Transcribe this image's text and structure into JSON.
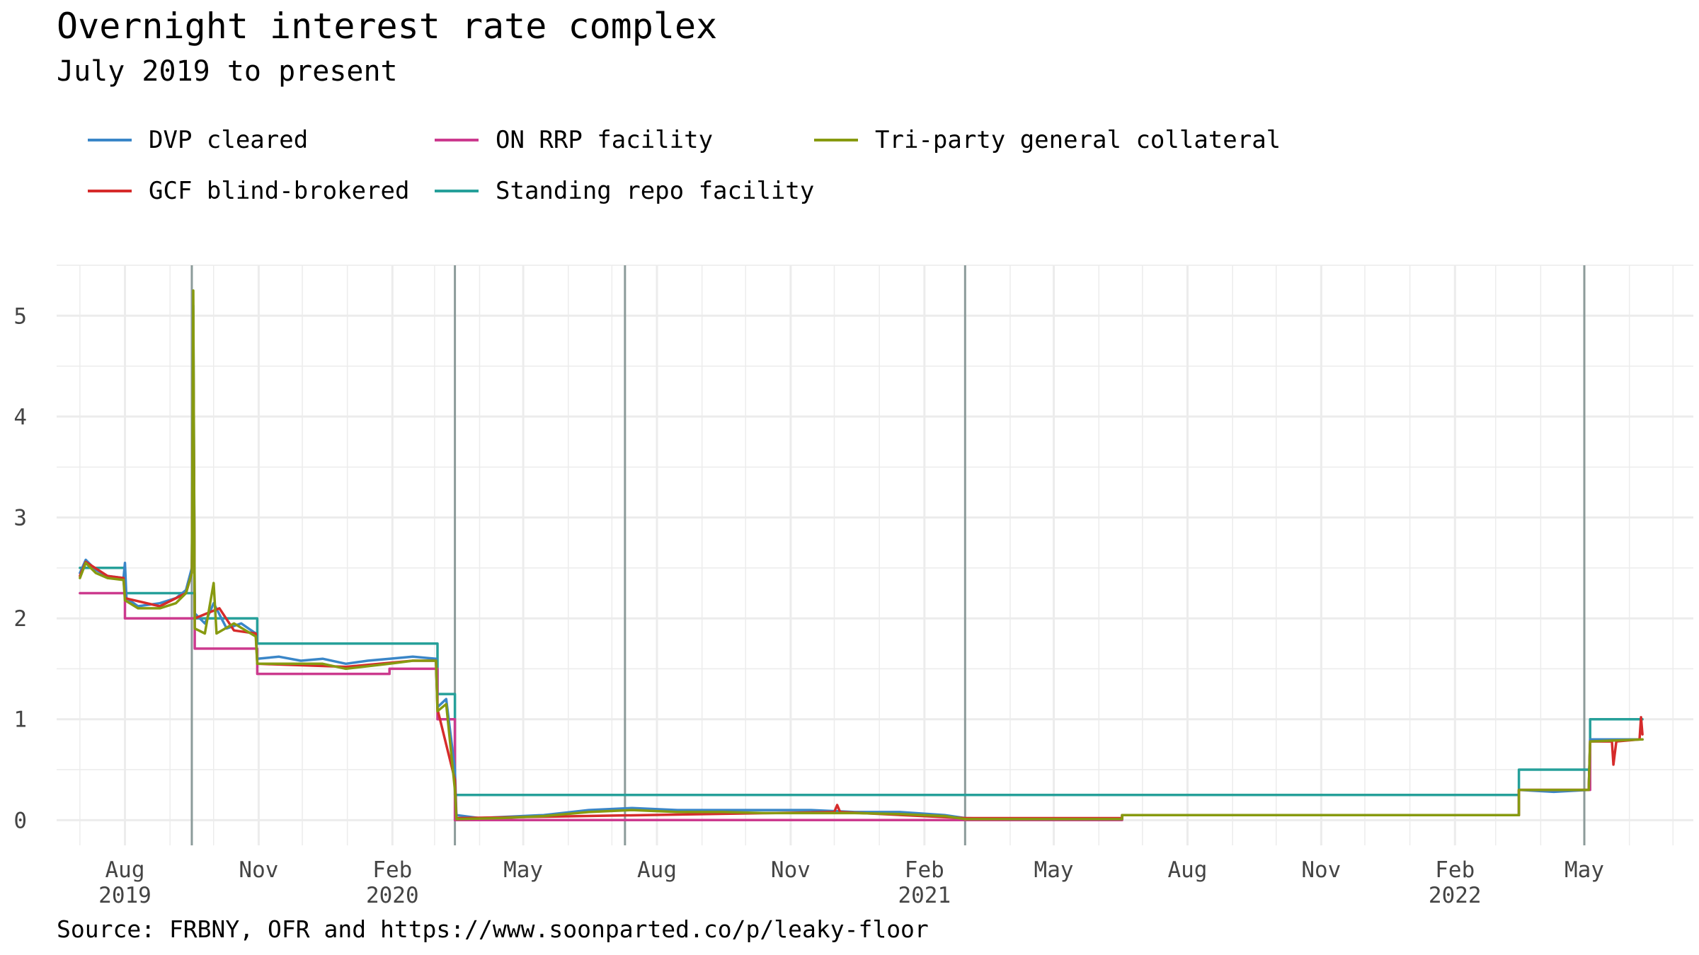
{
  "title": "Overnight interest rate complex",
  "subtitle": "July 2019 to present",
  "source": "Source: FRBNY, OFR and https://www.soonparted.co/p/leaky-floor",
  "colors": {
    "DVP cleared": "#3a86c8",
    "GCF blind-brokered": "#d62b2b",
    "ON RRP facility": "#cc3a8e",
    "Standing repo facility": "#26a09a",
    "Tri-party general collateral": "#879a10",
    "event_line": "#8c9b9a",
    "grid": "#ececec"
  },
  "chart_data": {
    "type": "line",
    "title": "Overnight interest rate complex",
    "subtitle": "July 2019 to present",
    "xlabel": "",
    "ylabel": "",
    "xlim": [
      "2019-06-15",
      "2022-07-15"
    ],
    "ylim": [
      -0.25,
      5.5
    ],
    "y_ticks": [
      0,
      1,
      2,
      3,
      4,
      5
    ],
    "x_ticks": [
      {
        "date": "2019-08-01",
        "label": [
          "Aug",
          "2019"
        ]
      },
      {
        "date": "2019-11-01",
        "label": [
          "Nov",
          ""
        ]
      },
      {
        "date": "2020-02-01",
        "label": [
          "Feb",
          "2020"
        ]
      },
      {
        "date": "2020-05-01",
        "label": [
          "May",
          ""
        ]
      },
      {
        "date": "2020-08-01",
        "label": [
          "Aug",
          ""
        ]
      },
      {
        "date": "2020-11-01",
        "label": [
          "Nov",
          ""
        ]
      },
      {
        "date": "2021-02-01",
        "label": [
          "Feb",
          "2021"
        ]
      },
      {
        "date": "2021-05-01",
        "label": [
          "May",
          ""
        ]
      },
      {
        "date": "2021-08-01",
        "label": [
          "Aug",
          ""
        ]
      },
      {
        "date": "2021-11-01",
        "label": [
          "Nov",
          ""
        ]
      },
      {
        "date": "2022-02-01",
        "label": [
          "Feb",
          "2022"
        ]
      },
      {
        "date": "2022-05-01",
        "label": [
          "May",
          ""
        ]
      }
    ],
    "grid": true,
    "legend_position": "top",
    "event_lines": [
      "2019-09-16",
      "2020-03-15",
      "2020-07-10",
      "2021-03-01",
      "2022-05-01"
    ],
    "series": [
      {
        "name": "Standing repo facility",
        "points": [
          [
            "2019-07-01",
            2.5
          ],
          [
            "2019-08-01",
            2.5
          ],
          [
            "2019-08-01",
            2.25
          ],
          [
            "2019-09-18",
            2.25
          ],
          [
            "2019-09-18",
            2.0
          ],
          [
            "2019-10-31",
            2.0
          ],
          [
            "2019-10-31",
            1.75
          ],
          [
            "2020-03-03",
            1.75
          ],
          [
            "2020-03-03",
            1.25
          ],
          [
            "2020-03-15",
            1.25
          ],
          [
            "2020-03-15",
            0.25
          ],
          [
            "2022-03-17",
            0.25
          ],
          [
            "2022-03-17",
            0.5
          ],
          [
            "2022-05-05",
            0.5
          ],
          [
            "2022-05-05",
            1.0
          ],
          [
            "2022-06-10",
            1.0
          ]
        ]
      },
      {
        "name": "ON RRP facility",
        "points": [
          [
            "2019-07-01",
            2.25
          ],
          [
            "2019-08-01",
            2.25
          ],
          [
            "2019-08-01",
            2.0
          ],
          [
            "2019-09-18",
            2.0
          ],
          [
            "2019-09-18",
            1.7
          ],
          [
            "2019-10-31",
            1.7
          ],
          [
            "2019-10-31",
            1.45
          ],
          [
            "2020-01-30",
            1.45
          ],
          [
            "2020-01-30",
            1.5
          ],
          [
            "2020-03-03",
            1.5
          ],
          [
            "2020-03-03",
            1.0
          ],
          [
            "2020-03-15",
            1.0
          ],
          [
            "2020-03-15",
            0.0
          ],
          [
            "2021-06-17",
            0.0
          ],
          [
            "2021-06-17",
            0.05
          ],
          [
            "2022-03-17",
            0.05
          ],
          [
            "2022-03-17",
            0.3
          ],
          [
            "2022-05-05",
            0.3
          ],
          [
            "2022-05-05",
            0.8
          ],
          [
            "2022-06-10",
            0.8
          ]
        ]
      },
      {
        "name": "DVP cleared",
        "points": [
          [
            "2019-07-01",
            2.45
          ],
          [
            "2019-07-05",
            2.58
          ],
          [
            "2019-07-12",
            2.48
          ],
          [
            "2019-07-20",
            2.42
          ],
          [
            "2019-07-31",
            2.4
          ],
          [
            "2019-08-01",
            2.55
          ],
          [
            "2019-08-02",
            2.2
          ],
          [
            "2019-08-10",
            2.12
          ],
          [
            "2019-08-25",
            2.15
          ],
          [
            "2019-09-05",
            2.2
          ],
          [
            "2019-09-12",
            2.28
          ],
          [
            "2019-09-16",
            2.5
          ],
          [
            "2019-09-17",
            5.1
          ],
          [
            "2019-09-18",
            2.05
          ],
          [
            "2019-09-25",
            1.95
          ],
          [
            "2019-10-01",
            2.15
          ],
          [
            "2019-10-10",
            1.9
          ],
          [
            "2019-10-20",
            1.95
          ],
          [
            "2019-10-30",
            1.85
          ],
          [
            "2019-10-31",
            1.6
          ],
          [
            "2019-11-15",
            1.62
          ],
          [
            "2019-11-30",
            1.58
          ],
          [
            "2019-12-15",
            1.6
          ],
          [
            "2019-12-31",
            1.55
          ],
          [
            "2020-01-15",
            1.58
          ],
          [
            "2020-01-30",
            1.6
          ],
          [
            "2020-02-15",
            1.62
          ],
          [
            "2020-03-02",
            1.6
          ],
          [
            "2020-03-03",
            1.12
          ],
          [
            "2020-03-09",
            1.2
          ],
          [
            "2020-03-15",
            0.5
          ],
          [
            "2020-03-16",
            0.05
          ],
          [
            "2020-04-01",
            0.02
          ],
          [
            "2020-05-15",
            0.05
          ],
          [
            "2020-06-15",
            0.1
          ],
          [
            "2020-07-15",
            0.12
          ],
          [
            "2020-08-15",
            0.1
          ],
          [
            "2020-09-15",
            0.1
          ],
          [
            "2020-10-15",
            0.1
          ],
          [
            "2020-11-15",
            0.1
          ],
          [
            "2020-12-15",
            0.08
          ],
          [
            "2021-01-15",
            0.08
          ],
          [
            "2021-02-15",
            0.05
          ],
          [
            "2021-03-01",
            0.02
          ],
          [
            "2021-04-01",
            0.01
          ],
          [
            "2021-06-17",
            0.01
          ],
          [
            "2021-06-17",
            0.05
          ],
          [
            "2021-11-01",
            0.05
          ],
          [
            "2022-03-17",
            0.05
          ],
          [
            "2022-03-17",
            0.3
          ],
          [
            "2022-04-10",
            0.28
          ],
          [
            "2022-05-04",
            0.3
          ],
          [
            "2022-05-05",
            0.8
          ],
          [
            "2022-06-10",
            0.8
          ]
        ]
      },
      {
        "name": "GCF blind-brokered",
        "points": [
          [
            "2019-07-01",
            2.42
          ],
          [
            "2019-07-05",
            2.56
          ],
          [
            "2019-07-20",
            2.42
          ],
          [
            "2019-07-31",
            2.4
          ],
          [
            "2019-08-01",
            2.2
          ],
          [
            "2019-08-25",
            2.12
          ],
          [
            "2019-09-12",
            2.25
          ],
          [
            "2019-09-16",
            2.45
          ],
          [
            "2019-09-17",
            4.8
          ],
          [
            "2019-09-18",
            2.0
          ],
          [
            "2019-10-05",
            2.1
          ],
          [
            "2019-10-15",
            1.88
          ],
          [
            "2019-10-30",
            1.85
          ],
          [
            "2019-10-31",
            1.55
          ],
          [
            "2019-12-31",
            1.52
          ],
          [
            "2020-02-15",
            1.58
          ],
          [
            "2020-03-02",
            1.58
          ],
          [
            "2020-03-03",
            1.1
          ],
          [
            "2020-03-15",
            0.4
          ],
          [
            "2020-03-16",
            0.02
          ],
          [
            "2020-12-01",
            0.08
          ],
          [
            "2020-12-03",
            0.15
          ],
          [
            "2020-12-05",
            0.08
          ],
          [
            "2021-03-01",
            0.02
          ],
          [
            "2021-06-17",
            0.02
          ],
          [
            "2021-06-17",
            0.05
          ],
          [
            "2022-03-17",
            0.05
          ],
          [
            "2022-03-17",
            0.3
          ],
          [
            "2022-05-04",
            0.3
          ],
          [
            "2022-05-05",
            0.78
          ],
          [
            "2022-05-20",
            0.78
          ],
          [
            "2022-05-21",
            0.55
          ],
          [
            "2022-05-23",
            0.78
          ],
          [
            "2022-06-08",
            0.8
          ],
          [
            "2022-06-09",
            1.02
          ],
          [
            "2022-06-10",
            0.85
          ]
        ]
      },
      {
        "name": "Tri-party general collateral",
        "points": [
          [
            "2019-07-01",
            2.4
          ],
          [
            "2019-07-05",
            2.55
          ],
          [
            "2019-07-12",
            2.45
          ],
          [
            "2019-07-20",
            2.4
          ],
          [
            "2019-07-31",
            2.38
          ],
          [
            "2019-08-01",
            2.18
          ],
          [
            "2019-08-10",
            2.1
          ],
          [
            "2019-08-25",
            2.1
          ],
          [
            "2019-09-05",
            2.15
          ],
          [
            "2019-09-12",
            2.25
          ],
          [
            "2019-09-16",
            2.45
          ],
          [
            "2019-09-17",
            5.25
          ],
          [
            "2019-09-18",
            1.9
          ],
          [
            "2019-09-25",
            1.85
          ],
          [
            "2019-10-01",
            2.35
          ],
          [
            "2019-10-03",
            1.85
          ],
          [
            "2019-10-15",
            1.95
          ],
          [
            "2019-10-30",
            1.82
          ],
          [
            "2019-10-31",
            1.55
          ],
          [
            "2019-11-15",
            1.55
          ],
          [
            "2019-12-15",
            1.55
          ],
          [
            "2019-12-31",
            1.5
          ],
          [
            "2020-01-30",
            1.55
          ],
          [
            "2020-02-15",
            1.58
          ],
          [
            "2020-03-02",
            1.58
          ],
          [
            "2020-03-03",
            1.08
          ],
          [
            "2020-03-09",
            1.15
          ],
          [
            "2020-03-15",
            0.3
          ],
          [
            "2020-03-16",
            0.01
          ],
          [
            "2020-04-15",
            0.02
          ],
          [
            "2020-05-15",
            0.04
          ],
          [
            "2020-06-15",
            0.08
          ],
          [
            "2020-07-15",
            0.1
          ],
          [
            "2020-08-15",
            0.08
          ],
          [
            "2020-09-15",
            0.08
          ],
          [
            "2020-10-15",
            0.07
          ],
          [
            "2020-11-15",
            0.07
          ],
          [
            "2020-12-15",
            0.07
          ],
          [
            "2021-01-15",
            0.06
          ],
          [
            "2021-02-15",
            0.04
          ],
          [
            "2021-03-01",
            0.01
          ],
          [
            "2021-06-17",
            0.01
          ],
          [
            "2021-06-17",
            0.05
          ],
          [
            "2022-03-17",
            0.05
          ],
          [
            "2022-03-17",
            0.3
          ],
          [
            "2022-05-04",
            0.3
          ],
          [
            "2022-05-05",
            0.78
          ],
          [
            "2022-06-10",
            0.8
          ]
        ]
      }
    ]
  },
  "legend": [
    {
      "label": "DVP cleared",
      "key": "DVP cleared"
    },
    {
      "label": "ON RRP facility",
      "key": "ON RRP facility"
    },
    {
      "label": "Tri-party general collateral",
      "key": "Tri-party general collateral"
    },
    {
      "label": "GCF blind-brokered",
      "key": "GCF blind-brokered"
    },
    {
      "label": "Standing repo facility",
      "key": "Standing repo facility"
    }
  ]
}
